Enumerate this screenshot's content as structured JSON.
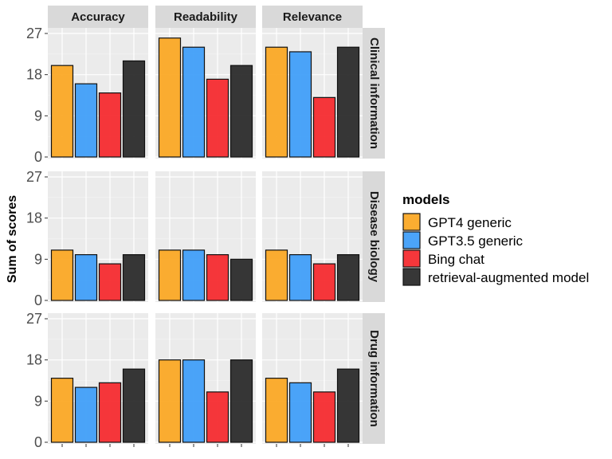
{
  "chart_data": {
    "type": "bar",
    "ylabel": "Sum of scores",
    "ylim": [
      0,
      27
    ],
    "yticks": [
      0,
      9,
      18,
      27
    ],
    "columns": [
      "Accuracy",
      "Readability",
      "Relevance"
    ],
    "rows": [
      "Clinical information",
      "Disease biology",
      "Drug information"
    ],
    "legend": {
      "title": "models",
      "position": "right",
      "entries": [
        {
          "name": "GPT4 generic",
          "color": "#FBA61F"
        },
        {
          "name": "GPT3.5 generic",
          "color": "#3C9CF9"
        },
        {
          "name": "Bing chat",
          "color": "#F5262A"
        },
        {
          "name": "retrieval-augmented model",
          "color": "#262626"
        }
      ]
    },
    "values": {
      "Clinical information": {
        "Accuracy": [
          20,
          16,
          14,
          21
        ],
        "Readability": [
          26,
          24,
          17,
          20
        ],
        "Relevance": [
          24,
          23,
          13,
          24
        ]
      },
      "Disease biology": {
        "Accuracy": [
          11,
          10,
          8,
          10
        ],
        "Readability": [
          11,
          11,
          10,
          9
        ],
        "Relevance": [
          11,
          10,
          8,
          10
        ]
      },
      "Drug information": {
        "Accuracy": [
          14,
          12,
          13,
          16
        ],
        "Readability": [
          18,
          18,
          11,
          18
        ],
        "Relevance": [
          14,
          13,
          11,
          16
        ]
      }
    }
  }
}
